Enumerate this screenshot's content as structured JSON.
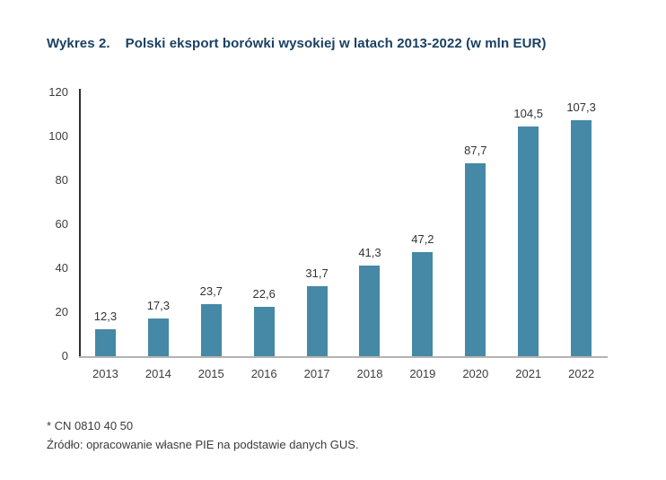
{
  "title": {
    "prefix": "Wykres 2.",
    "text": "Polski eksport borówki wysokiej w latach 2013-2022 (w mln EUR)",
    "color": "#1a4062"
  },
  "chart_data": {
    "type": "bar",
    "title": "Polski eksport borówki wysokiej w latach 2013-2022 (w mln EUR)",
    "categories": [
      "2013",
      "2014",
      "2015",
      "2016",
      "2017",
      "2018",
      "2019",
      "2020",
      "2021",
      "2022"
    ],
    "values": [
      12.3,
      17.3,
      23.7,
      22.6,
      31.7,
      41.3,
      47.2,
      87.7,
      104.5,
      107.3
    ],
    "value_labels": [
      "12,3",
      "17,3",
      "23,7",
      "22,6",
      "31,7",
      "41,3",
      "47,2",
      "87,7",
      "104,5",
      "107,3"
    ],
    "xlabel": "",
    "ylabel": "",
    "ylim": [
      0,
      120
    ],
    "yticks": [
      0,
      20,
      40,
      60,
      80,
      100,
      120
    ],
    "grid": false,
    "legend": false,
    "bar_color": "#4589a6"
  },
  "footnotes": {
    "line1": "* CN 0810 40 50",
    "line2": "Źródło: opracowanie własne PIE na podstawie danych GUS."
  }
}
